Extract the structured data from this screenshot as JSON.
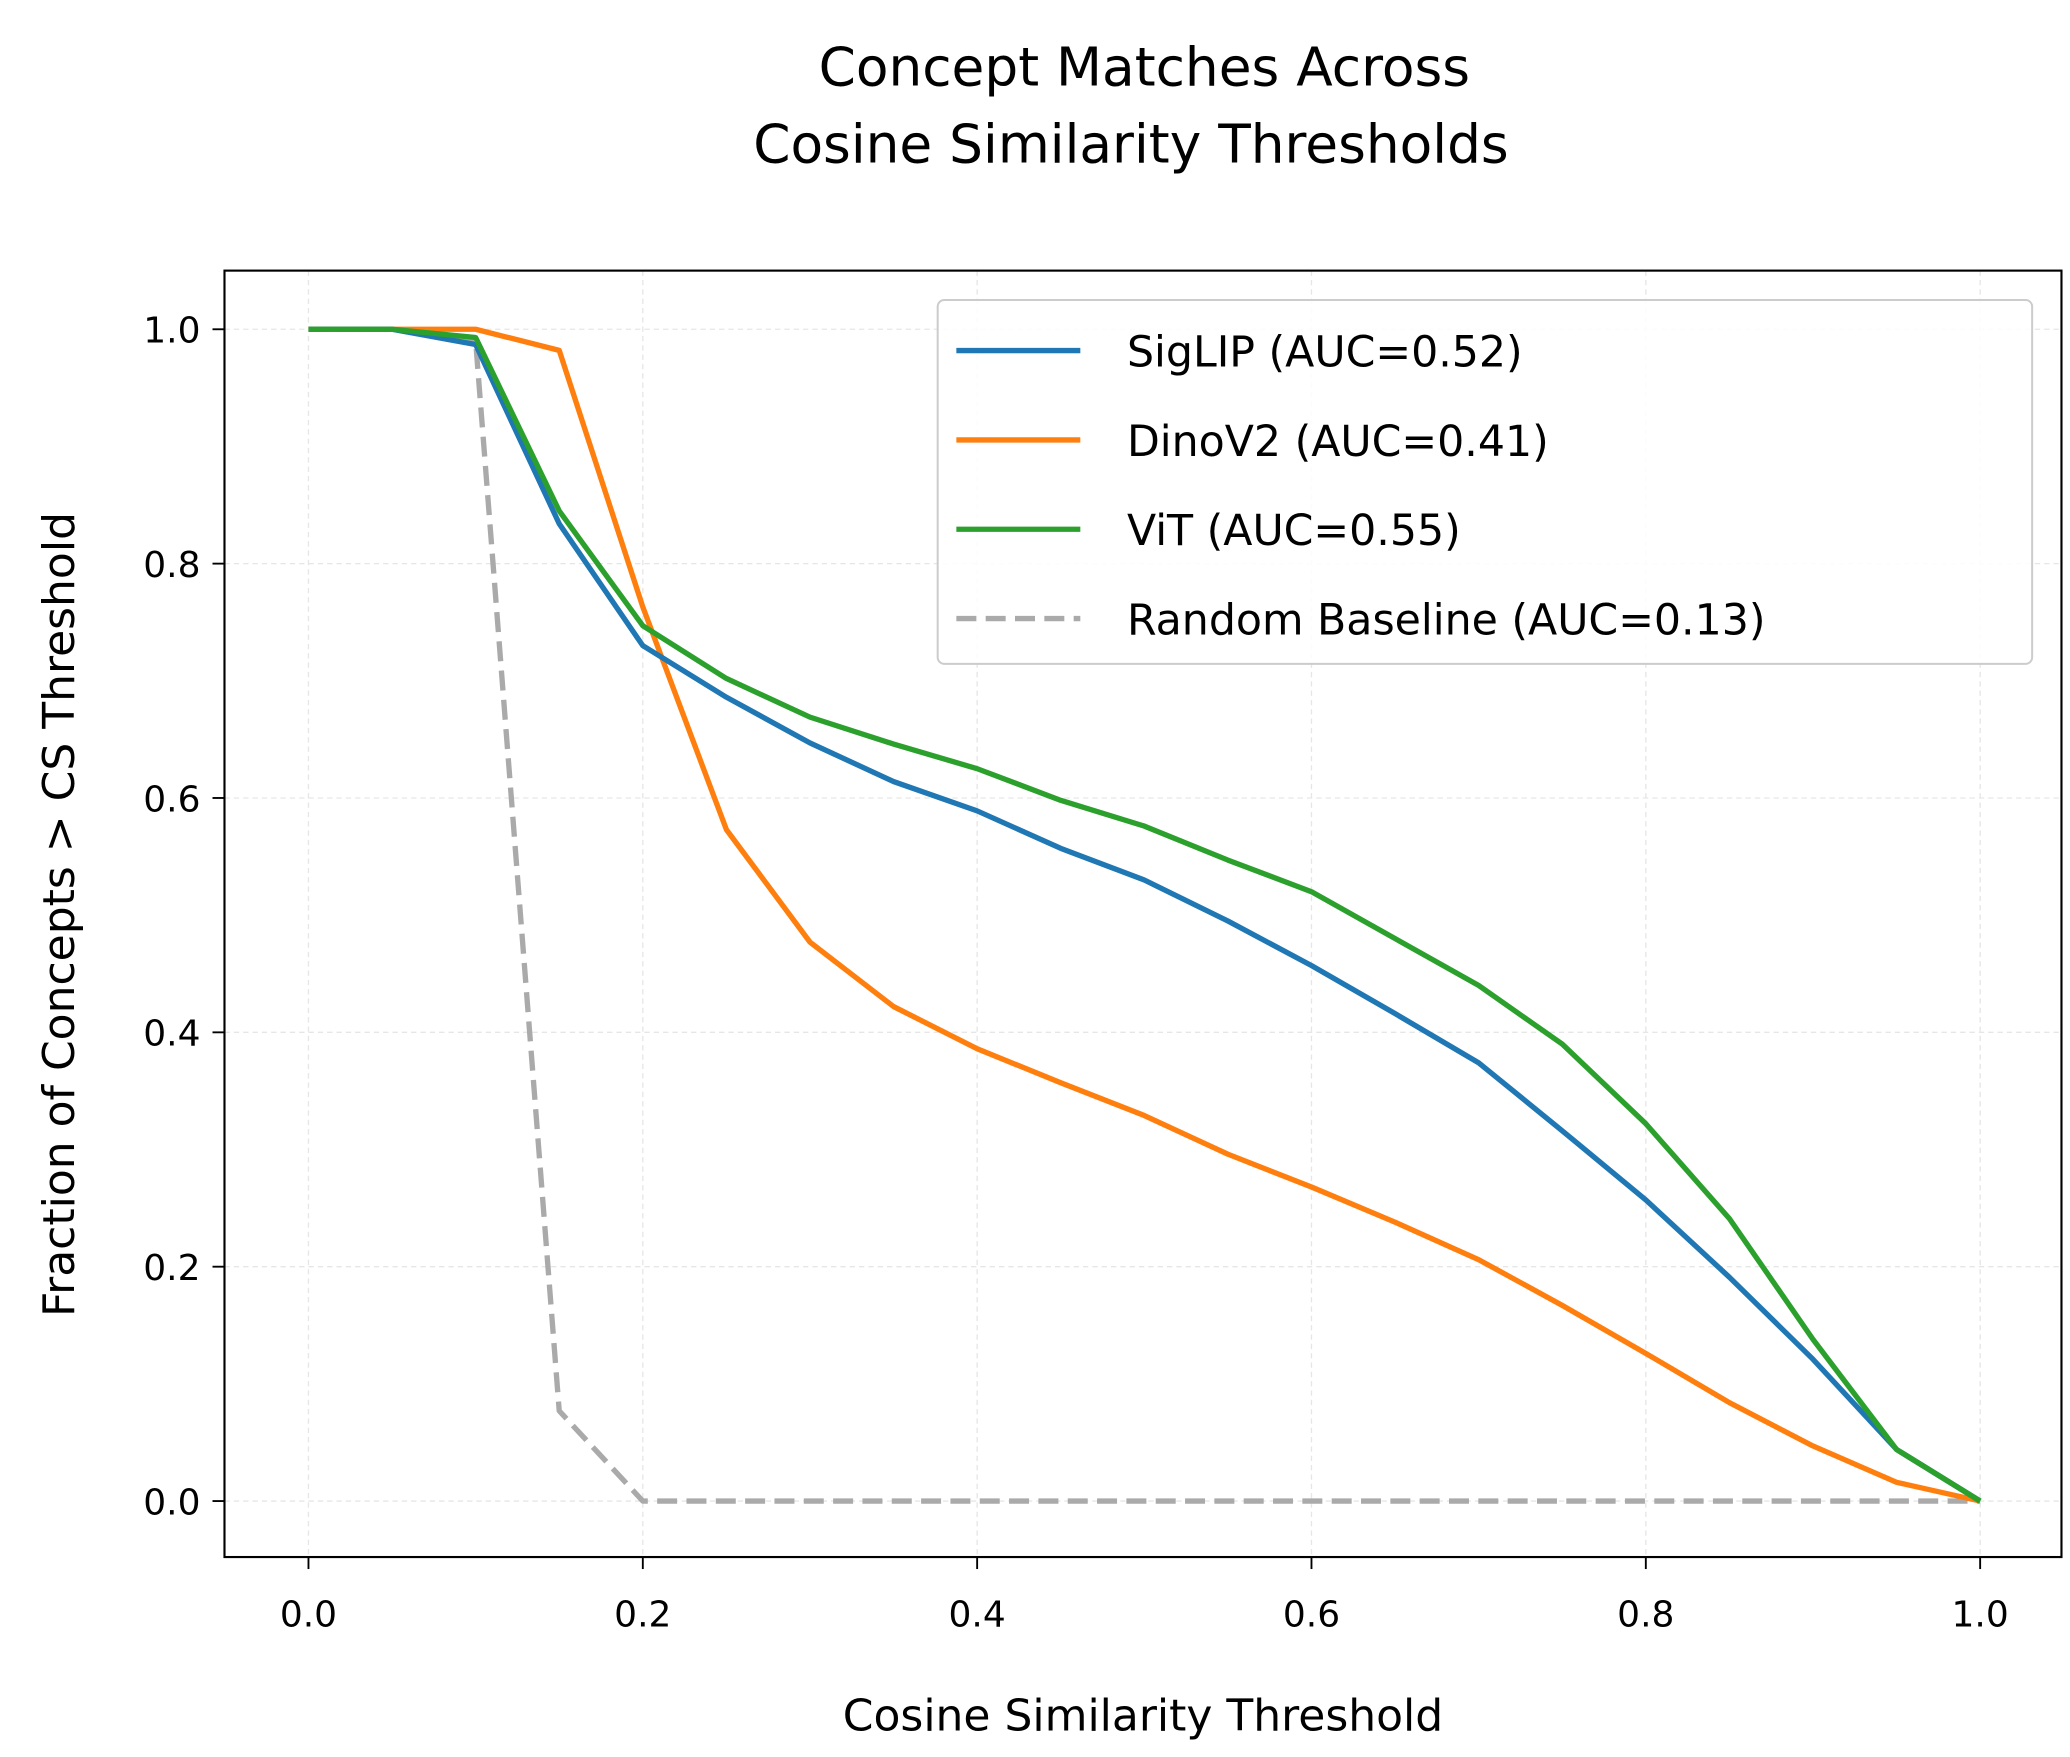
{
  "chart_data": {
    "type": "line",
    "title": [
      "Concept Matches Across",
      "Cosine Similarity Thresholds"
    ],
    "xlabel": "Cosine Similarity Threshold",
    "ylabel": "Fraction of Concepts > CS Threshold",
    "xlim": [
      -0.05,
      1.05
    ],
    "ylim": [
      -0.05,
      1.05
    ],
    "xticks": [
      "0.0",
      "0.2",
      "0.4",
      "0.6",
      "0.8",
      "1.0"
    ],
    "yticks": [
      "0.0",
      "0.2",
      "0.4",
      "0.6",
      "0.8",
      "1.0"
    ],
    "grid": true,
    "legend_position": "top-right",
    "x": [
      0,
      0.05,
      0.1,
      0.15,
      0.2,
      0.25,
      0.3,
      0.35,
      0.4,
      0.45,
      0.5,
      0.55,
      0.6,
      0.65,
      0.7,
      0.75,
      0.8,
      0.85,
      0.9,
      0.95,
      1.0
    ],
    "series": [
      {
        "name": "SigLIP (AUC=0.52)",
        "color": "#1f77b4",
        "dash": false,
        "values": [
          1.0,
          1.0,
          0.987,
          0.834,
          0.73,
          0.686,
          0.647,
          0.614,
          0.589,
          0.557,
          0.53,
          0.495,
          0.457,
          0.416,
          0.374,
          0.316,
          0.257,
          0.191,
          0.121,
          0.044,
          0.0
        ]
      },
      {
        "name": "DinoV2 (AUC=0.41)",
        "color": "#ff7f0e",
        "dash": false,
        "values": [
          1.0,
          1.0,
          1.0,
          0.982,
          0.763,
          0.573,
          0.477,
          0.422,
          0.386,
          0.357,
          0.329,
          0.296,
          0.268,
          0.238,
          0.206,
          0.167,
          0.126,
          0.084,
          0.047,
          0.016,
          0.0
        ]
      },
      {
        "name": "ViT (AUC=0.55)",
        "color": "#2ca02c",
        "dash": false,
        "values": [
          1.0,
          1.0,
          0.993,
          0.845,
          0.747,
          0.702,
          0.669,
          0.646,
          0.625,
          0.598,
          0.576,
          0.547,
          0.52,
          0.48,
          0.44,
          0.39,
          0.322,
          0.241,
          0.138,
          0.044,
          0.0
        ]
      },
      {
        "name": "Random Baseline (AUC=0.13)",
        "color": "#aaaaaa",
        "dash": true,
        "values": [
          1.0,
          1.0,
          0.99,
          0.077,
          0.0,
          0.0,
          0.0,
          0.0,
          0.0,
          0.0,
          0.0,
          0.0,
          0.0,
          0.0,
          0.0,
          0.0,
          0.0,
          0.0,
          0.0,
          0.0,
          0.0
        ]
      }
    ]
  }
}
